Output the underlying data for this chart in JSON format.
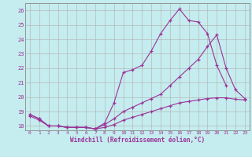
{
  "xlabel": "Windchill (Refroidissement éolien,°C)",
  "background_color": "#c5ecee",
  "grid_color": "#b0b0b0",
  "line_color": "#993399",
  "xlim": [
    -0.5,
    23.5
  ],
  "ylim": [
    17.7,
    26.5
  ],
  "xticks": [
    0,
    1,
    2,
    3,
    4,
    5,
    6,
    7,
    8,
    9,
    10,
    11,
    12,
    13,
    14,
    15,
    16,
    17,
    18,
    19,
    20,
    21,
    22,
    23
  ],
  "yticks": [
    18,
    19,
    20,
    21,
    22,
    23,
    24,
    25,
    26
  ],
  "line1_x": [
    0,
    1,
    2,
    3,
    4,
    5,
    6,
    7,
    8,
    9,
    10,
    11,
    12,
    13,
    14,
    15,
    16,
    17,
    18,
    19,
    20,
    21
  ],
  "line1_y": [
    18.8,
    18.5,
    18.0,
    18.0,
    17.9,
    17.9,
    17.9,
    17.8,
    18.2,
    19.6,
    21.7,
    21.9,
    22.2,
    23.2,
    24.4,
    25.3,
    26.1,
    25.3,
    25.2,
    24.4,
    22.2,
    20.8
  ],
  "line2_x": [
    0,
    1,
    2,
    3,
    4,
    5,
    6,
    7,
    8,
    9,
    10,
    11,
    12,
    13,
    14,
    15,
    16,
    17,
    18,
    19,
    20,
    21,
    22,
    23
  ],
  "line2_y": [
    18.8,
    18.5,
    18.0,
    18.0,
    17.9,
    17.9,
    17.9,
    17.8,
    18.1,
    18.5,
    19.0,
    19.3,
    19.6,
    19.9,
    20.2,
    20.8,
    21.4,
    22.0,
    22.6,
    23.5,
    24.3,
    22.0,
    20.5,
    19.9
  ],
  "line3_x": [
    0,
    1,
    2,
    3,
    4,
    5,
    6,
    7,
    8,
    9,
    10,
    11,
    12,
    13,
    14,
    15,
    16,
    17,
    18,
    19,
    20,
    21,
    22,
    23
  ],
  "line3_y": [
    18.7,
    18.4,
    18.0,
    18.0,
    17.9,
    17.9,
    17.9,
    17.8,
    17.9,
    18.1,
    18.4,
    18.6,
    18.8,
    19.0,
    19.2,
    19.4,
    19.6,
    19.7,
    19.8,
    19.9,
    19.95,
    19.95,
    19.85,
    19.8
  ]
}
